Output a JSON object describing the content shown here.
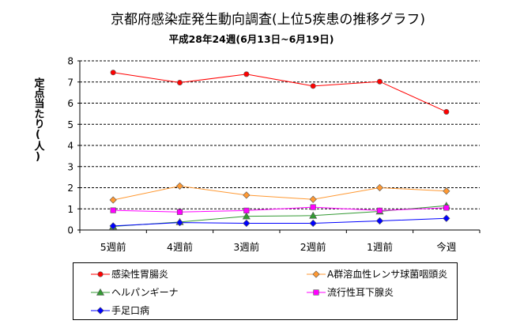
{
  "chart_data": {
    "type": "line",
    "title": "京都府感染症発生動向調査(上位5疾患の推移グラフ)",
    "subtitle": "平成28年24週(6月13日~6月19日)",
    "ylabel": "定点当たり(人)",
    "xlabel": "",
    "ylim": [
      0,
      8
    ],
    "yticks": [
      "0",
      "1",
      "2",
      "3",
      "4",
      "5",
      "6",
      "7",
      "8"
    ],
    "grid": true,
    "legend_position": "bottom",
    "categories": [
      "5週前",
      "4週前",
      "3週前",
      "2週前",
      "1週前",
      "今週"
    ],
    "series": [
      {
        "name": "感染性胃腸炎",
        "color": "#ff0000",
        "marker": "circle",
        "values": [
          7.45,
          6.97,
          7.37,
          6.81,
          7.02,
          5.59
        ]
      },
      {
        "name": "A群溶血性レンサ球菌咽頭炎",
        "color": "#ff9933",
        "marker": "diamond",
        "values": [
          1.42,
          2.08,
          1.65,
          1.45,
          2.0,
          1.84
        ]
      },
      {
        "name": "ヘルパンギーナ",
        "color": "#339933",
        "marker": "triangle",
        "values": [
          0.17,
          0.38,
          0.65,
          0.68,
          0.88,
          1.15
        ]
      },
      {
        "name": "流行性耳下腺炎",
        "color": "#ff00ff",
        "marker": "square",
        "values": [
          0.93,
          0.85,
          0.92,
          1.08,
          0.92,
          1.05
        ]
      },
      {
        "name": "手足口病",
        "color": "#0000ff",
        "marker": "diamond",
        "values": [
          0.19,
          0.35,
          0.32,
          0.32,
          0.43,
          0.55
        ]
      }
    ]
  }
}
